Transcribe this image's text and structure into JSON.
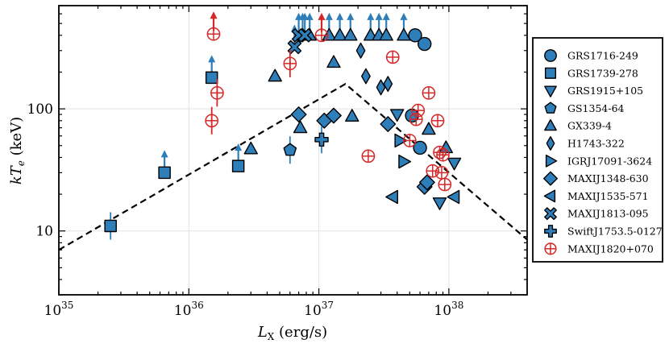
{
  "chart_data": {
    "type": "scatter",
    "title": "",
    "xlabel": "L_X (erg/s)",
    "ylabel": "kT_e (keV)",
    "xscale": "log",
    "yscale": "log",
    "xlim": [
      1e+35,
      4e+38
    ],
    "ylim": [
      3,
      700
    ],
    "x_ticks": [
      {
        "value": 1e+35,
        "base": "10",
        "exp": "35"
      },
      {
        "value": 1e+36,
        "base": "10",
        "exp": "36"
      },
      {
        "value": 1e+37,
        "base": "10",
        "exp": "37"
      },
      {
        "value": 1e+38,
        "base": "10",
        "exp": "38"
      }
    ],
    "y_ticks": [
      {
        "value": 10,
        "label": "10"
      },
      {
        "value": 100,
        "label": "100"
      }
    ],
    "grid": true,
    "legend_position": "right",
    "colors": {
      "blue": "#2E7EBA",
      "red": "#D62728",
      "edge": "#000000"
    },
    "model_line": [
      {
        "x": 1e+35,
        "y": 7.0
      },
      {
        "x": 1.6e+37,
        "y": 160
      },
      {
        "x": 4e+38,
        "y": 8.5
      }
    ],
    "series": [
      {
        "name": "GRS1716-249",
        "marker": "circle",
        "points": [
          {
            "x": 5.5e+37,
            "y": 400
          },
          {
            "x": 6.5e+37,
            "y": 340
          },
          {
            "x": 5.2e+37,
            "y": 88
          },
          {
            "x": 6e+37,
            "y": 48
          }
        ]
      },
      {
        "name": "GRS1739-278",
        "marker": "square",
        "points": [
          {
            "x": 2.5e+35,
            "y": 11,
            "err": true
          },
          {
            "x": 6.5e+35,
            "y": 30,
            "lower": true
          },
          {
            "x": 1.5e+36,
            "y": 180,
            "lower": true
          },
          {
            "x": 2.4e+36,
            "y": 34,
            "lower": true
          }
        ]
      },
      {
        "name": "GRS1915+105",
        "marker": "triangle_down",
        "points": [
          {
            "x": 8.5e+37,
            "y": 17
          },
          {
            "x": 1.1e+38,
            "y": 36
          },
          {
            "x": 4e+37,
            "y": 90
          }
        ]
      },
      {
        "name": "GS1354-64",
        "marker": "pentagon",
        "points": [
          {
            "x": 6e+36,
            "y": 46,
            "err": true
          }
        ]
      },
      {
        "name": "GX339-4",
        "marker": "triangle_up",
        "points": [
          {
            "x": 3e+36,
            "y": 47
          },
          {
            "x": 4.6e+36,
            "y": 185
          },
          {
            "x": 7.2e+36,
            "y": 70
          },
          {
            "x": 1.3e+37,
            "y": 240
          },
          {
            "x": 1.8e+37,
            "y": 87
          },
          {
            "x": 9.5e+37,
            "y": 48
          },
          {
            "x": 7e+37,
            "y": 68
          },
          {
            "x": 7.5e+36,
            "y": 400,
            "lower": true
          },
          {
            "x": 8.5e+36,
            "y": 400,
            "lower": true
          },
          {
            "x": 1.2e+37,
            "y": 400,
            "lower": true
          },
          {
            "x": 1.45e+37,
            "y": 400,
            "lower": true
          },
          {
            "x": 1.75e+37,
            "y": 400,
            "lower": true
          },
          {
            "x": 2.5e+37,
            "y": 400,
            "lower": true
          },
          {
            "x": 2.9e+37,
            "y": 400,
            "lower": true
          },
          {
            "x": 3.3e+37,
            "y": 400,
            "lower": true
          },
          {
            "x": 4.5e+37,
            "y": 400,
            "lower": true
          }
        ]
      },
      {
        "name": "H1743-322",
        "marker": "thin_diamond",
        "points": [
          {
            "x": 2.1e+37,
            "y": 300
          },
          {
            "x": 2.3e+37,
            "y": 185
          },
          {
            "x": 3e+37,
            "y": 150
          },
          {
            "x": 3.4e+37,
            "y": 160
          }
        ]
      },
      {
        "name": "IGRJ17091-3624",
        "marker": "triangle_right",
        "points": [
          {
            "x": 4.5e+37,
            "y": 37
          },
          {
            "x": 4.2e+37,
            "y": 55
          }
        ]
      },
      {
        "name": "MAXIJ1348-630",
        "marker": "diamond",
        "points": [
          {
            "x": 7e+36,
            "y": 90
          },
          {
            "x": 1.1e+37,
            "y": 80
          },
          {
            "x": 1.3e+37,
            "y": 88
          },
          {
            "x": 3.4e+37,
            "y": 75
          },
          {
            "x": 6.5e+37,
            "y": 23
          },
          {
            "x": 6.8e+37,
            "y": 25
          }
        ]
      },
      {
        "name": "MAXIJ1535-571",
        "marker": "triangle_left",
        "points": [
          {
            "x": 1.1e+38,
            "y": 19
          },
          {
            "x": 3.7e+37,
            "y": 19
          }
        ]
      },
      {
        "name": "MAXIJ1813-095",
        "marker": "x",
        "points": [
          {
            "x": 6.5e+36,
            "y": 320,
            "lower": true
          },
          {
            "x": 7e+36,
            "y": 400,
            "lower": true
          },
          {
            "x": 7.8e+36,
            "y": 400,
            "lower": true
          }
        ]
      },
      {
        "name": "SwiftJ1753.5-0127",
        "marker": "plus",
        "points": [
          {
            "x": 1.05e+37,
            "y": 56,
            "err": true
          }
        ]
      },
      {
        "name": "MAXIJ1820+070",
        "marker": "circle_plus",
        "points": [
          {
            "x": 1.55e+36,
            "y": 410,
            "lower": true
          },
          {
            "x": 1.5e+36,
            "y": 80,
            "err": true
          },
          {
            "x": 1.65e+36,
            "y": 135,
            "err": true
          },
          {
            "x": 6e+36,
            "y": 235,
            "err": true
          },
          {
            "x": 1.05e+37,
            "y": 400,
            "lower": true
          },
          {
            "x": 2.4e+37,
            "y": 41
          },
          {
            "x": 3.7e+37,
            "y": 265
          },
          {
            "x": 5e+37,
            "y": 55
          },
          {
            "x": 5.6e+37,
            "y": 82
          },
          {
            "x": 5.8e+37,
            "y": 97
          },
          {
            "x": 7e+37,
            "y": 135
          },
          {
            "x": 7.5e+37,
            "y": 31
          },
          {
            "x": 8.2e+37,
            "y": 80
          },
          {
            "x": 8.5e+37,
            "y": 44
          },
          {
            "x": 9e+37,
            "y": 42
          },
          {
            "x": 8.8e+37,
            "y": 30
          },
          {
            "x": 9.3e+37,
            "y": 24
          }
        ]
      }
    ]
  }
}
